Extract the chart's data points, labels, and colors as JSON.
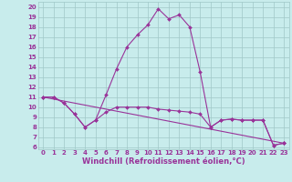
{
  "xlabel": "Windchill (Refroidissement éolien,°C)",
  "bg_color": "#c8ecec",
  "grid_color": "#a0c8c8",
  "line_color": "#993399",
  "spine_color": "#993399",
  "xlim": [
    -0.5,
    23.5
  ],
  "ylim": [
    5.8,
    20.5
  ],
  "xticks": [
    0,
    1,
    2,
    3,
    4,
    5,
    6,
    7,
    8,
    9,
    10,
    11,
    12,
    13,
    14,
    15,
    16,
    17,
    18,
    19,
    20,
    21,
    22,
    23
  ],
  "yticks": [
    6,
    7,
    8,
    9,
    10,
    11,
    12,
    13,
    14,
    15,
    16,
    17,
    18,
    19,
    20
  ],
  "line1_x": [
    0,
    1,
    2,
    3,
    4,
    5,
    6,
    7,
    8,
    9,
    10,
    11,
    12,
    13,
    14,
    15,
    16,
    17,
    18,
    19,
    20,
    21,
    22,
    23
  ],
  "line1_y": [
    11.0,
    11.0,
    10.4,
    9.3,
    8.0,
    8.7,
    11.2,
    13.8,
    16.0,
    17.2,
    18.2,
    19.8,
    18.8,
    19.2,
    18.0,
    13.5,
    8.0,
    8.7,
    8.8,
    8.7,
    8.7,
    8.7,
    6.2,
    6.4
  ],
  "line2_x": [
    0,
    1,
    2,
    3,
    4,
    5,
    6,
    7,
    8,
    9,
    10,
    11,
    12,
    13,
    14,
    15,
    16,
    17,
    18,
    19,
    20,
    21,
    22,
    23
  ],
  "line2_y": [
    11.0,
    11.0,
    10.4,
    9.3,
    8.0,
    8.7,
    9.5,
    10.0,
    10.0,
    10.0,
    10.0,
    9.8,
    9.7,
    9.6,
    9.5,
    9.3,
    8.0,
    8.7,
    8.8,
    8.7,
    8.7,
    8.7,
    6.2,
    6.4
  ],
  "line3_x": [
    0,
    23
  ],
  "line3_y": [
    11.0,
    6.4
  ],
  "marker_size": 2.0,
  "linewidth": 0.8,
  "tick_fontsize": 5.0,
  "xlabel_fontsize": 6.0
}
